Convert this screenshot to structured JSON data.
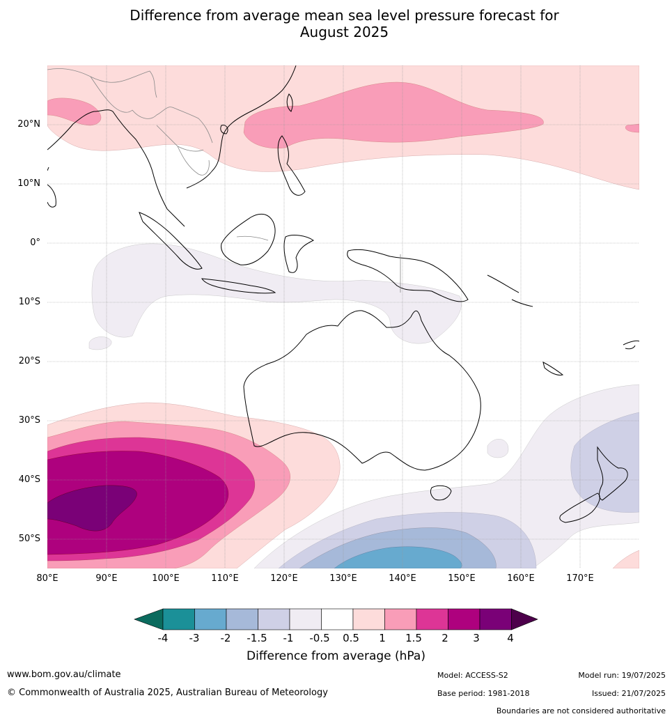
{
  "title_line1": "Difference from average mean sea level pressure forecast for",
  "title_line2": "August 2025",
  "map": {
    "lon_range": [
      80,
      180
    ],
    "lat_range": [
      -55,
      30
    ],
    "lat_labels": [
      "20°N",
      "10°N",
      "0°",
      "10°S",
      "20°S",
      "30°S",
      "40°S",
      "50°S"
    ],
    "lon_labels": [
      "80°E",
      "90°E",
      "100°E",
      "110°E",
      "120°E",
      "130°E",
      "140°E",
      "150°E",
      "160°E",
      "170°E"
    ]
  },
  "colorbar": {
    "ticks": [
      "-4",
      "-3",
      "-2",
      "-1.5",
      "-1",
      "-0.5",
      "0.5",
      "1",
      "1.5",
      "2",
      "3",
      "4"
    ],
    "colors": [
      "#1b9098",
      "#67aacf",
      "#a6b9d9",
      "#cfd0e6",
      "#f0ecf3",
      "#ffffff",
      "#fddcdb",
      "#f99db8",
      "#dd3596",
      "#ae017e",
      "#7a0177"
    ],
    "low_extend_color": "#0b6b5e",
    "high_extend_color": "#4d004b",
    "label": "Difference from average (hPa)"
  },
  "footer": {
    "website": "www.bom.gov.au/climate",
    "copyright": "© Commonwealth of Australia 2025, Australian Bureau of Meteorology",
    "model": "Model: ACCESS-S2",
    "base_period": "Base period: 1981-2018",
    "model_run": "Model run: 19/07/2025",
    "issued": "Issued: 21/07/2025",
    "boundaries_note": "Boundaries are not considered authoritative"
  }
}
